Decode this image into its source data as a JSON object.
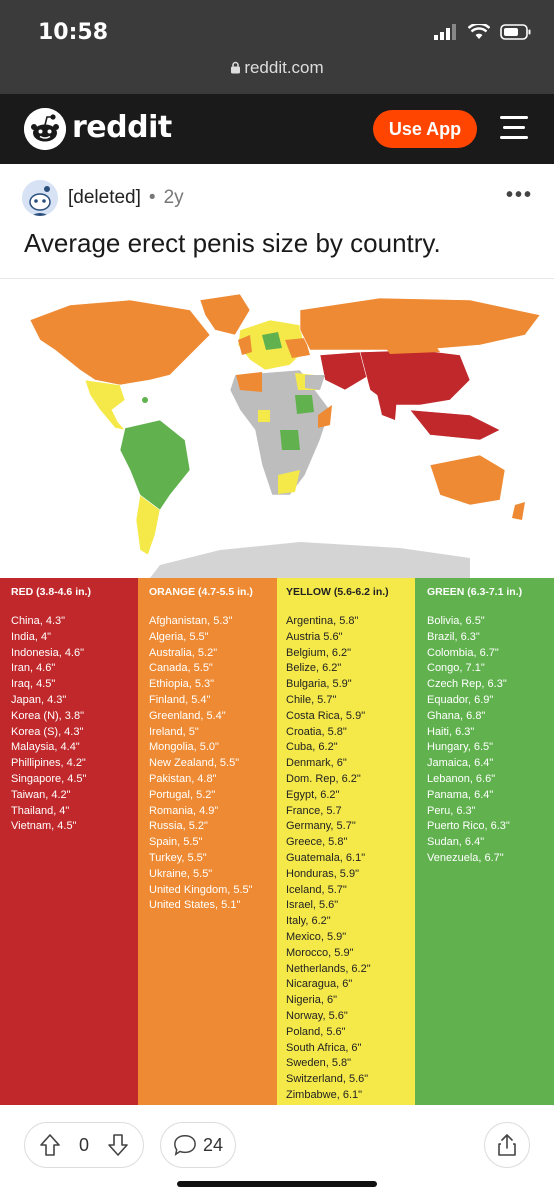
{
  "status": {
    "time": "10:58",
    "url": "reddit.com"
  },
  "header": {
    "brand": "reddit",
    "use_app": "Use App"
  },
  "post": {
    "author": "[deleted]",
    "separator": "•",
    "age": "2y",
    "more": "•••",
    "title": "Average erect penis size by country."
  },
  "legend": {
    "red": {
      "header": "RED (3.8-4.6 in.)",
      "items": [
        "China, 4.3\"",
        "India, 4\"",
        "Indonesia, 4.6\"",
        "Iran, 4.6\"",
        "Iraq, 4.5\"",
        "Japan, 4.3\"",
        "Korea (N), 3.8\"",
        "Korea (S), 4.3\"",
        "Malaysia, 4.4\"",
        "Phillipines, 4.2\"",
        "Singapore, 4.5\"",
        "Taiwan, 4.2\"",
        "Thailand, 4\"",
        "Vietnam, 4.5\""
      ]
    },
    "orange": {
      "header": "ORANGE (4.7-5.5 in.)",
      "items": [
        "Afghanistan, 5.3\"",
        "Algeria, 5.5\"",
        "Australia, 5.2\"",
        "Canada, 5.5\"",
        "Ethiopia, 5.3\"",
        "Finland, 5.4\"",
        "Greenland, 5.4\"",
        "Ireland, 5\"",
        "Mongolia, 5.0\"",
        "New Zealand, 5.5\"",
        "Pakistan, 4.8\"",
        "Portugal, 5.2\"",
        "Romania, 4.9\"",
        "Russia, 5.2\"",
        "Spain, 5.5\"",
        "Turkey, 5.5\"",
        "Ukraine, 5.5\"",
        "United Kingdom, 5.5\"",
        "United States, 5.1\""
      ]
    },
    "yellow": {
      "header": "YELLOW (5.6-6.2 in.)",
      "items": [
        "Argentina, 5.8\"",
        "Austria 5.6\"",
        "Belgium, 6.2\"",
        "Belize, 6.2\"",
        "Bulgaria, 5.9\"",
        "Chile, 5.7\"",
        "Costa Rica, 5.9\"",
        "Croatia, 5.8\"",
        "Cuba, 6.2\"",
        "Denmark, 6\"",
        "Dom. Rep, 6.2\"",
        "Egypt, 6.2\"",
        "France, 5.7",
        "Germany, 5.7\"",
        "Greece, 5.8\"",
        "Guatemala, 6.1\"",
        "Honduras, 5.9\"",
        "Iceland, 5.7\"",
        "Israel, 5.6\"",
        "Italy, 6.2\"",
        "Mexico, 5.9\"",
        "Morocco, 5.9\"",
        "Netherlands, 6.2\"",
        "Nicaragua, 6\"",
        "Nigeria, 6\"",
        "Norway, 5.6\"",
        "Poland, 5.6\"",
        "South Africa, 6\"",
        "Sweden, 5.8\"",
        "Switzerland, 5.6\"",
        "Zimbabwe, 6.1\""
      ]
    },
    "green": {
      "header": "GREEN (6.3-7.1 in.)",
      "items": [
        "Bolivia, 6.5\"",
        "Brazil, 6.3\"",
        "Colombia, 6.7\"",
        "Congo, 7.1\"",
        "Czech Rep, 6.3\"",
        "Equador, 6.9\"",
        "Ghana, 6.8\"",
        "Haiti, 6.3\"",
        "Hungary, 6.5\"",
        "Jamaica, 6.4\"",
        "Lebanon, 6.6\"",
        "Panama, 6.4\"",
        "Peru, 6.3\"",
        "Puerto Rico, 6.3\"",
        "Sudan, 6.4\"",
        "Venezuela, 6.7\""
      ]
    }
  },
  "colors": {
    "red": "#c0282b",
    "orange": "#ee8a33",
    "yellow": "#f5e94a",
    "green": "#61b24f",
    "no_data": "#bdbdbd",
    "accent": "#ff4500"
  },
  "actions": {
    "upvotes": "0",
    "comments": "24"
  },
  "icons": [
    "lock-icon",
    "signal-icon",
    "wifi-icon",
    "battery-icon",
    "reddit-snoo-icon",
    "hamburger-menu-icon",
    "more-icon",
    "upvote-icon",
    "downvote-icon",
    "comment-icon",
    "share-icon"
  ]
}
